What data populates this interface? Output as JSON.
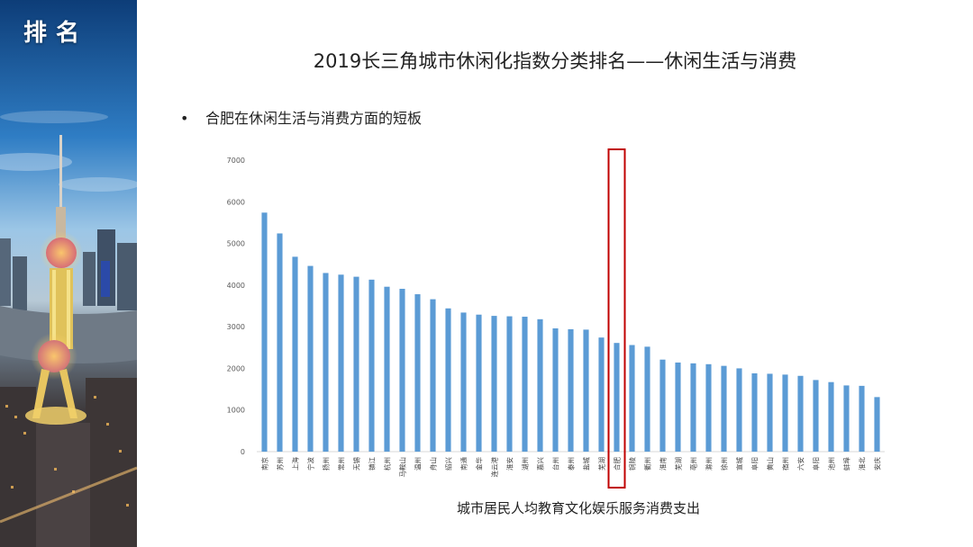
{
  "sidebar": {
    "label": "排名"
  },
  "slide": {
    "title": "2019长三角城市休闲化指数分类排名——休闲生活与消费",
    "bullet": "合肥在休闲生活与消费方面的短板"
  },
  "colors": {
    "bar": "#5B9BD5",
    "highlight": "#C00000",
    "sidebar_bg": "#1b4f86"
  },
  "chart_data": {
    "type": "bar",
    "categories": [
      "南京",
      "苏州",
      "上海",
      "宁波",
      "扬州",
      "常州",
      "无锡",
      "镇江",
      "杭州",
      "马鞍山",
      "温州",
      "舟山",
      "绍兴",
      "南通",
      "金华",
      "连云港",
      "淮安",
      "湖州",
      "嘉兴",
      "台州",
      "泰州",
      "盐城",
      "芜湖",
      "合肥",
      "铜陵",
      "衢州",
      "淮南",
      "芜湖",
      "亳州",
      "滁州",
      "徐州",
      "宣城",
      "阜阳",
      "黄山",
      "宿州",
      "六安",
      "阜阳",
      "池州",
      "蚌埠",
      "淮北",
      "安庆"
    ],
    "values": [
      5740,
      5240,
      4680,
      4460,
      4290,
      4250,
      4200,
      4130,
      3960,
      3910,
      3780,
      3660,
      3440,
      3340,
      3290,
      3260,
      3250,
      3240,
      3180,
      2960,
      2940,
      2930,
      2740,
      2610,
      2560,
      2520,
      2210,
      2140,
      2120,
      2100,
      2060,
      2000,
      1880,
      1870,
      1850,
      1820,
      1720,
      1670,
      1590,
      1580,
      1310
    ],
    "highlight_category": "合肥",
    "xlabel": "城市居民人均教育文化娱乐服务消费支出",
    "ylabel": "",
    "ylim": [
      0,
      7000
    ],
    "yticks": [
      0,
      1000,
      2000,
      3000,
      4000,
      5000,
      6000,
      7000
    ],
    "grid": false,
    "legend": "none"
  }
}
